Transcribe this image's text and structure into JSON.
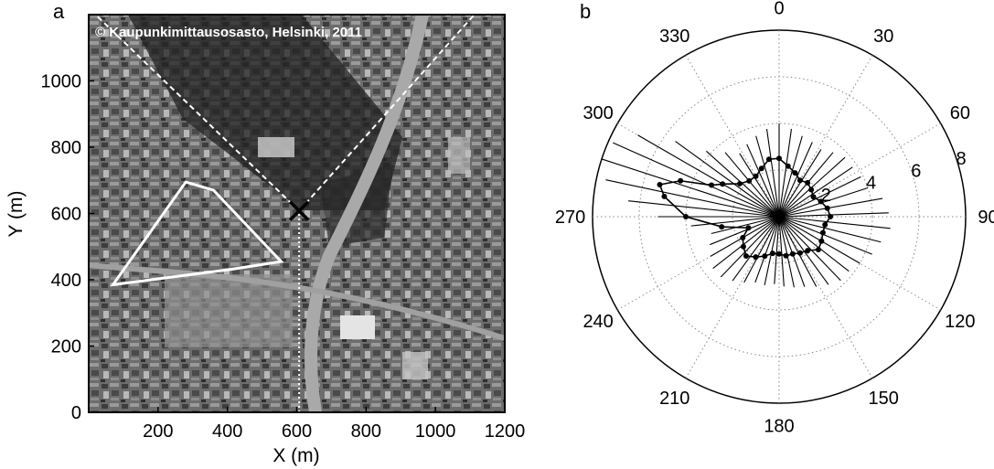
{
  "panel_a": {
    "letter": "a",
    "copyright": "© Kaupunkimittausosasto, Helsinki, 2011",
    "xlabel": "X (m)",
    "ylabel": "Y (m)"
  },
  "panel_b": {
    "letter": "b"
  },
  "chart_data": [
    {
      "type": "scatter",
      "panel": "a",
      "title": "",
      "xlabel": "X (m)",
      "ylabel": "Y (m)",
      "xlim": [
        0,
        1200
      ],
      "ylim": [
        0,
        1200
      ],
      "xticks": [
        200,
        400,
        600,
        800,
        1000,
        1200
      ],
      "yticks": [
        0,
        200,
        400,
        600,
        800,
        1000
      ],
      "background": "aerial photograph (grayscale)",
      "annotations": {
        "station_marker": {
          "symbol": "X",
          "x": 607,
          "y": 608
        },
        "sector_boundaries": [
          {
            "style": "dashed",
            "color": "#ffffff",
            "from": [
              607,
              608
            ],
            "to": [
              5,
              1215
            ]
          },
          {
            "style": "dashed",
            "color": "#ffffff",
            "from": [
              607,
              608
            ],
            "to": [
              1125,
              1215
            ]
          }
        ],
        "vertical_dotted_line": {
          "color": "#ffffff",
          "x": 607,
          "y_from": 0,
          "y_to": 608
        },
        "outlined_area": {
          "color": "#ffffff",
          "polygon": [
            [
              70,
              385
            ],
            [
              280,
              695
            ],
            [
              360,
              670
            ],
            [
              555,
              455
            ],
            [
              415,
              432
            ]
          ]
        }
      }
    },
    {
      "type": "polar",
      "panel": "b",
      "theta_direction": "clockwise",
      "theta_zero": "top",
      "theta_ticks": [
        0,
        30,
        60,
        90,
        120,
        150,
        180,
        210,
        240,
        270,
        300,
        330
      ],
      "r_ticks": [
        2,
        4,
        6,
        8
      ],
      "rlim": [
        0,
        8
      ],
      "grid": true,
      "dotted_series": [
        [
          0,
          2.5
        ],
        [
          10,
          2.2
        ],
        [
          20,
          2.0
        ],
        [
          30,
          1.8
        ],
        [
          40,
          1.9
        ],
        [
          50,
          1.8
        ],
        [
          60,
          1.7
        ],
        [
          70,
          1.9
        ],
        [
          80,
          2.1
        ],
        [
          90,
          2.2
        ],
        [
          100,
          2.0
        ],
        [
          110,
          2.0
        ],
        [
          120,
          2.1
        ],
        [
          130,
          2.2
        ],
        [
          140,
          1.9
        ],
        [
          150,
          1.8
        ],
        [
          160,
          1.7
        ],
        [
          170,
          1.7
        ],
        [
          180,
          1.6
        ],
        [
          190,
          1.6
        ],
        [
          200,
          1.8
        ],
        [
          210,
          2.0
        ],
        [
          220,
          2.2
        ],
        [
          230,
          2.0
        ],
        [
          240,
          1.8
        ],
        [
          250,
          1.4
        ],
        [
          260,
          2.5
        ],
        [
          270,
          4.0
        ],
        [
          280,
          5.0
        ],
        [
          285,
          5.3
        ],
        [
          290,
          4.5
        ],
        [
          295,
          3.2
        ],
        [
          300,
          2.8
        ],
        [
          310,
          2.2
        ],
        [
          320,
          2.0
        ],
        [
          330,
          2.0
        ],
        [
          340,
          2.2
        ],
        [
          350,
          2.5
        ]
      ],
      "whisker_series": [
        [
          0,
          4.0
        ],
        [
          8,
          3.8
        ],
        [
          16,
          3.6
        ],
        [
          24,
          3.5
        ],
        [
          32,
          3.4
        ],
        [
          40,
          3.6
        ],
        [
          48,
          3.8
        ],
        [
          56,
          3.8
        ],
        [
          64,
          3.9
        ],
        [
          72,
          4.0
        ],
        [
          80,
          4.5
        ],
        [
          88,
          4.7
        ],
        [
          96,
          4.8
        ],
        [
          104,
          4.5
        ],
        [
          112,
          4.3
        ],
        [
          120,
          4.0
        ],
        [
          128,
          3.8
        ],
        [
          136,
          3.8
        ],
        [
          144,
          3.6
        ],
        [
          152,
          3.4
        ],
        [
          160,
          3.2
        ],
        [
          168,
          3.1
        ],
        [
          176,
          3.0
        ],
        [
          184,
          2.9
        ],
        [
          192,
          3.0
        ],
        [
          200,
          3.0
        ],
        [
          208,
          3.2
        ],
        [
          216,
          3.4
        ],
        [
          224,
          3.6
        ],
        [
          232,
          3.6
        ],
        [
          240,
          3.4
        ],
        [
          248,
          3.2
        ],
        [
          256,
          3.0
        ],
        [
          264,
          3.8
        ],
        [
          270,
          5.2
        ],
        [
          276,
          6.5
        ],
        [
          282,
          7.6
        ],
        [
          288,
          8.0
        ],
        [
          294,
          7.8
        ],
        [
          300,
          7.0
        ],
        [
          306,
          5.5
        ],
        [
          312,
          4.2
        ],
        [
          320,
          3.6
        ],
        [
          328,
          3.2
        ],
        [
          336,
          3.4
        ],
        [
          344,
          3.6
        ],
        [
          352,
          3.8
        ]
      ]
    }
  ]
}
